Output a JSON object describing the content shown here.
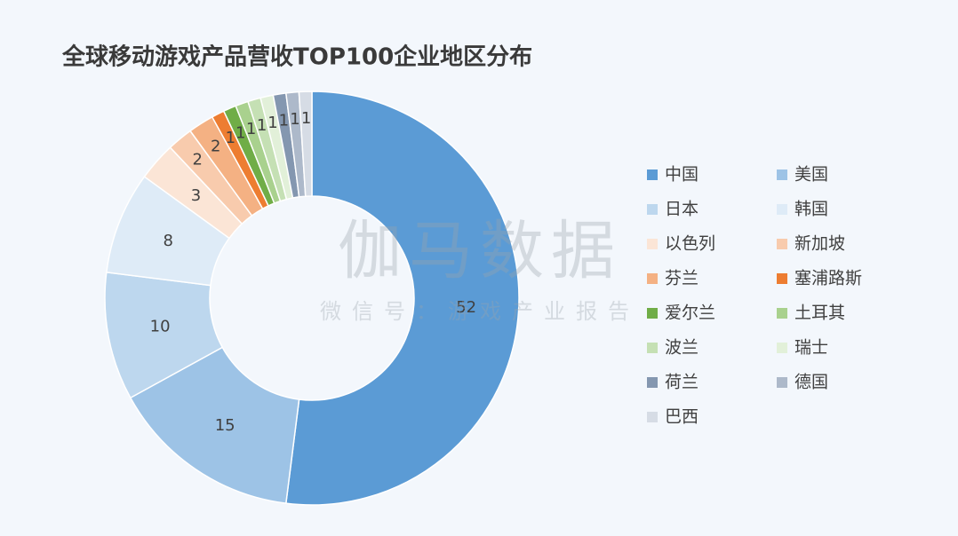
{
  "chart_data": {
    "type": "donut",
    "title": "全球移动游戏产品营收TOP100企业地区分布",
    "categories": [
      "中国",
      "美国",
      "日本",
      "韩国",
      "以色列",
      "新加坡",
      "芬兰",
      "塞浦路斯",
      "爱尔兰",
      "土耳其",
      "波兰",
      "瑞士",
      "荷兰",
      "德国",
      "巴西"
    ],
    "values": [
      52,
      15,
      10,
      8,
      3,
      2,
      2,
      1,
      1,
      1,
      1,
      1,
      1,
      1,
      1
    ],
    "colors": [
      "#5b9bd5",
      "#9dc3e6",
      "#bdd7ee",
      "#deebf7",
      "#fbe5d6",
      "#f8cbad",
      "#f4b183",
      "#ed7d31",
      "#70ad47",
      "#a9d18e",
      "#c5e0b4",
      "#e2f0d9",
      "#8497b0",
      "#adb9ca",
      "#d6dce5"
    ],
    "watermark": {
      "main": "伽马数据",
      "sub": "微信号：游戏产业报告"
    }
  }
}
